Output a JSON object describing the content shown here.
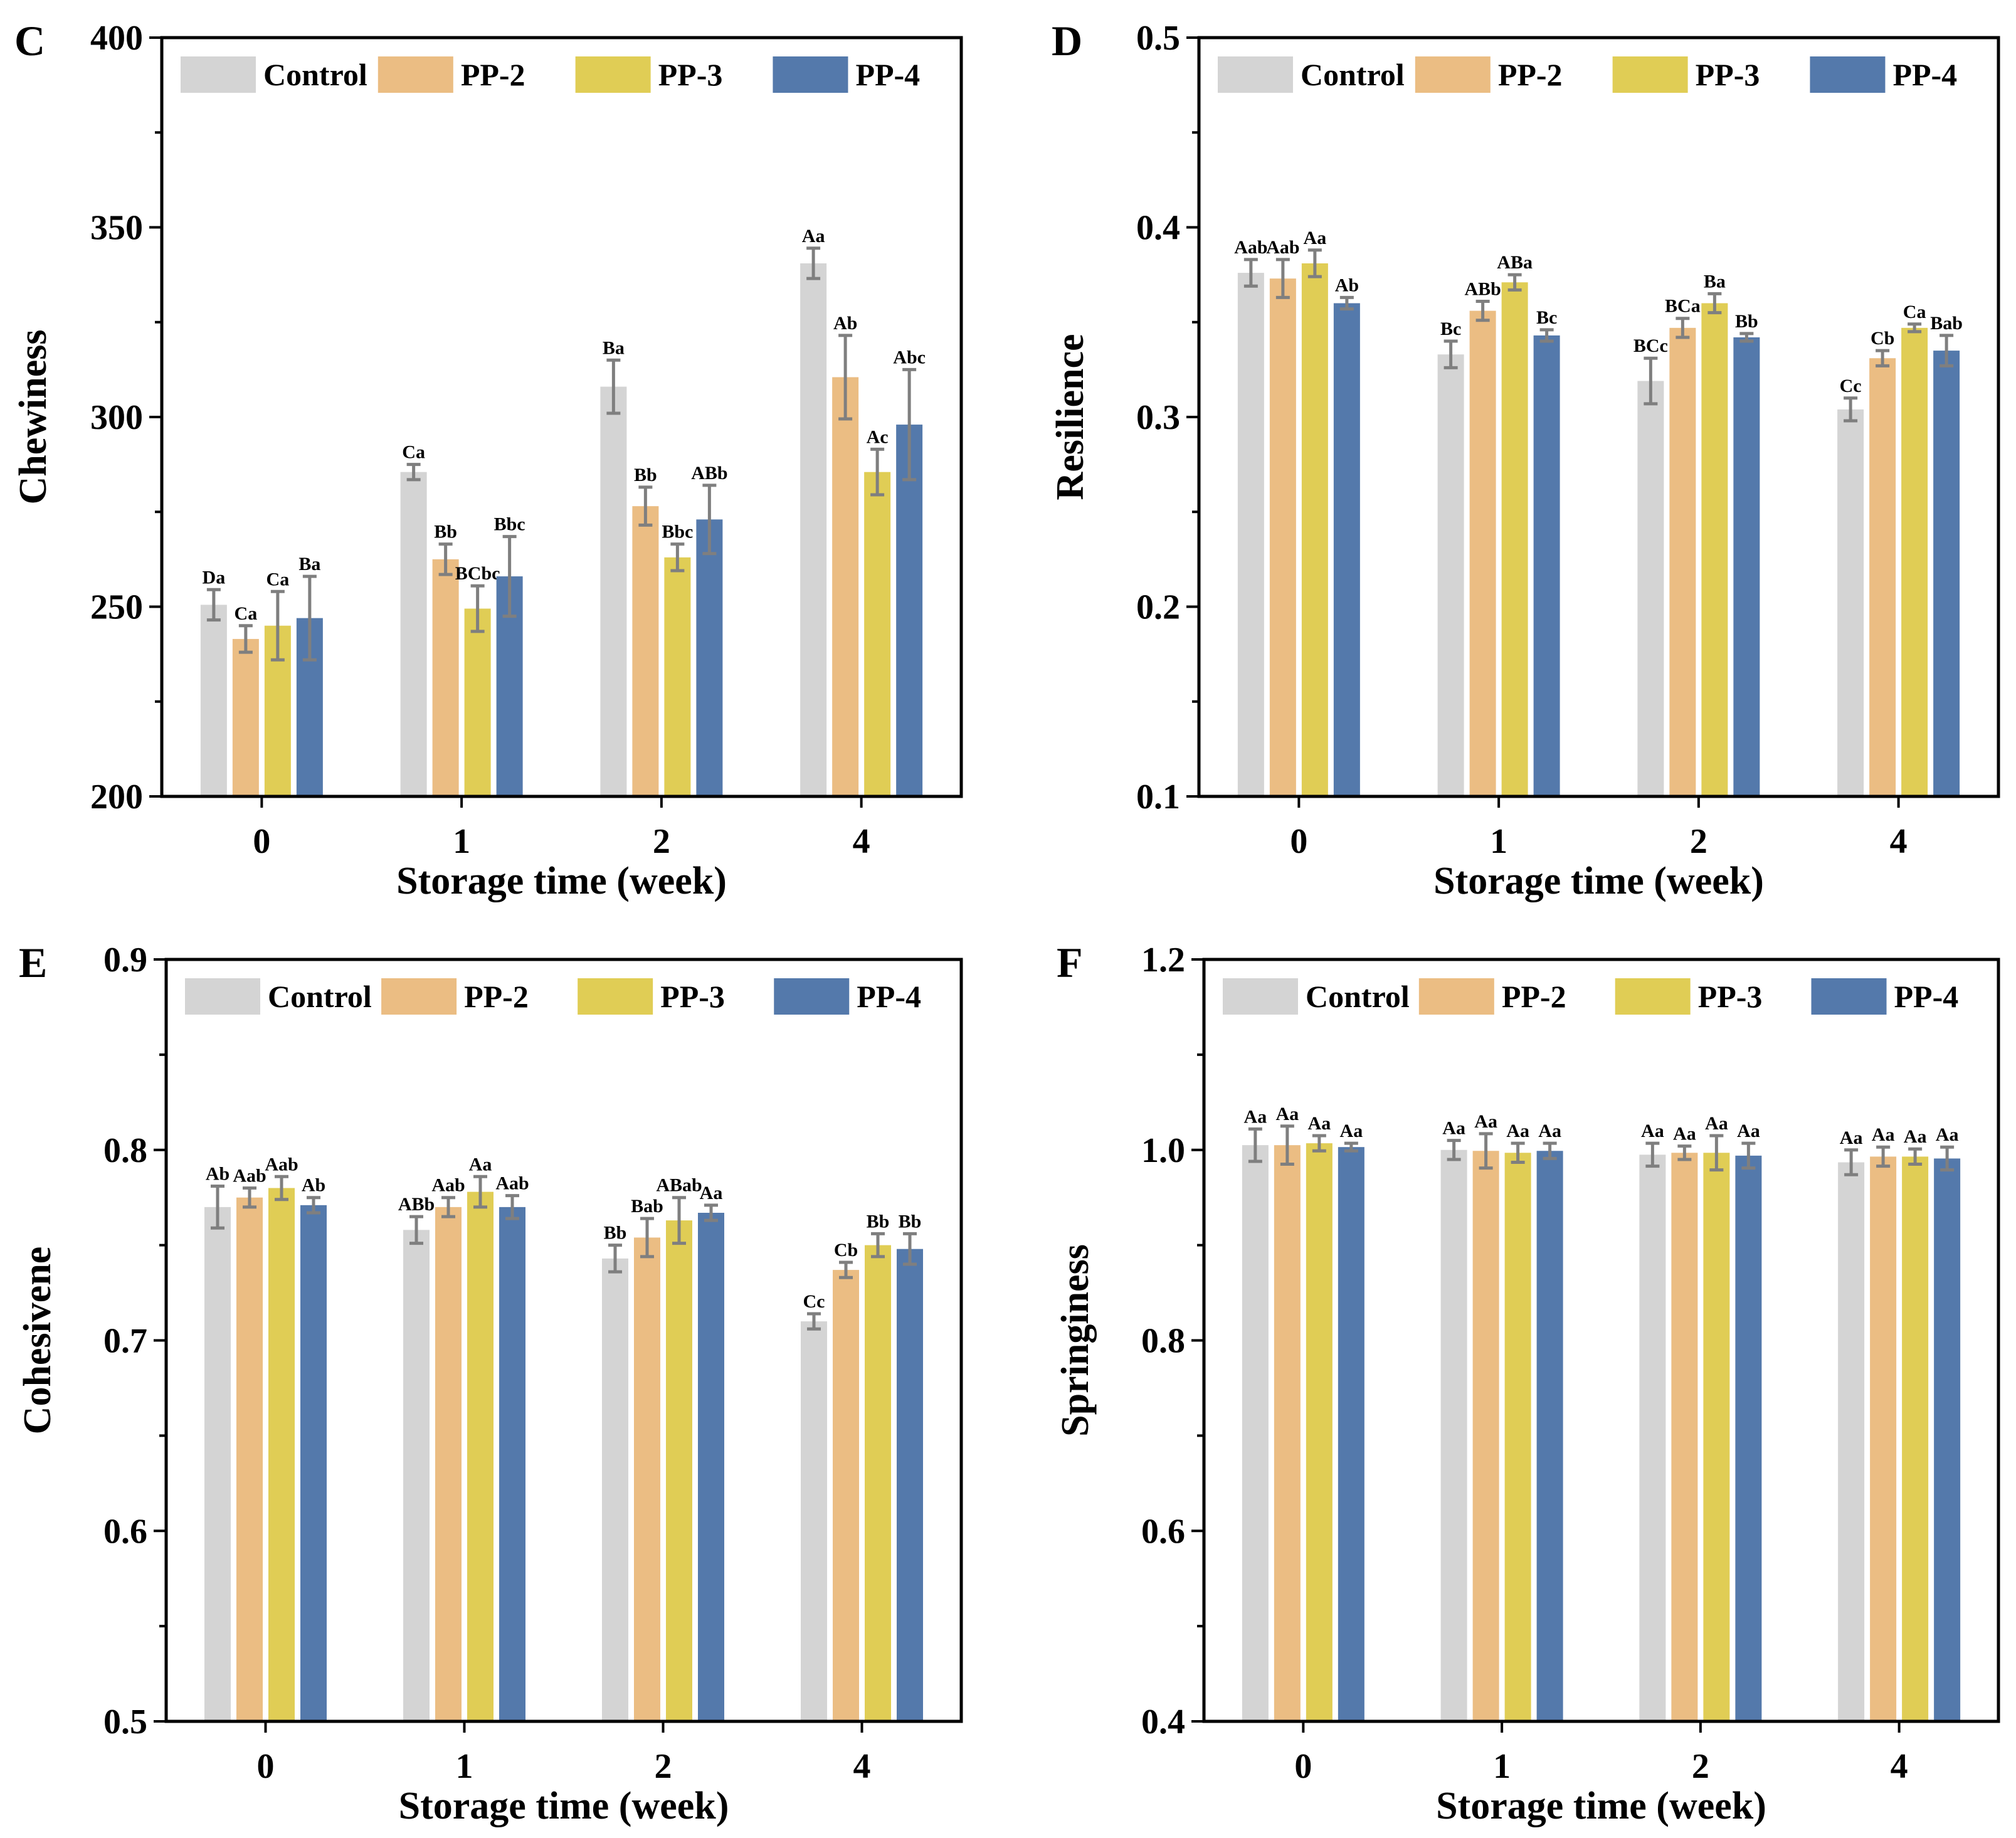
{
  "figure": {
    "series_names": [
      "Control",
      "PP-2",
      "PP-3",
      "PP-4"
    ],
    "series_colors": [
      "#d4d4d4",
      "#ebbd83",
      "#e0cd55",
      "#5479ab"
    ],
    "error_bar_color": "#7f7f7f"
  },
  "chart_data": [
    {
      "type": "bar",
      "panel": "C",
      "title": "",
      "xlabel": "Storage time (week)",
      "ylabel": "Chewiness",
      "categories": [
        "0",
        "1",
        "2",
        "4"
      ],
      "ylim": [
        200,
        400
      ],
      "yticks": [
        "200",
        "250",
        "300",
        "350",
        "400"
      ],
      "legend": "top",
      "series": [
        {
          "name": "Control",
          "values": [
            250.5,
            285.5,
            308,
            340.5
          ],
          "errors": [
            4,
            2,
            7,
            4
          ],
          "letters": [
            "Da",
            "Ca",
            "Ba",
            "Aa"
          ]
        },
        {
          "name": "PP-2",
          "values": [
            241.5,
            262.5,
            276.5,
            310.5
          ],
          "errors": [
            3.5,
            4,
            5,
            11
          ],
          "letters": [
            "Ca",
            "Bb",
            "Bb",
            "Ab"
          ]
        },
        {
          "name": "PP-3",
          "values": [
            245,
            249.5,
            263,
            285.5
          ],
          "errors": [
            9,
            6,
            3.5,
            6
          ],
          "letters": [
            "Ca",
            "BCbc",
            "Bbc",
            "Ac"
          ]
        },
        {
          "name": "PP-4",
          "values": [
            247,
            258,
            273,
            298
          ],
          "errors": [
            11,
            10.5,
            9,
            14.5
          ],
          "letters": [
            "Ba",
            "Bbc",
            "ABb",
            "Abc"
          ]
        }
      ]
    },
    {
      "type": "bar",
      "panel": "D",
      "title": "",
      "xlabel": "Storage time (week)",
      "ylabel": "Resilience",
      "categories": [
        "0",
        "1",
        "2",
        "4"
      ],
      "ylim": [
        0.1,
        0.5
      ],
      "yticks": [
        "0.1",
        "0.2",
        "0.3",
        "0.4",
        "0.5"
      ],
      "legend": "top",
      "series": [
        {
          "name": "Control",
          "values": [
            0.376,
            0.333,
            0.319,
            0.304
          ],
          "errors": [
            0.007,
            0.007,
            0.012,
            0.006
          ],
          "letters": [
            "Aab",
            "Bc",
            "BCc",
            "Cc"
          ]
        },
        {
          "name": "PP-2",
          "values": [
            0.373,
            0.356,
            0.347,
            0.331
          ],
          "errors": [
            0.01,
            0.005,
            0.005,
            0.004
          ],
          "letters": [
            "Aab",
            "ABb",
            "BCa",
            "Cb"
          ]
        },
        {
          "name": "PP-3",
          "values": [
            0.381,
            0.371,
            0.36,
            0.347
          ],
          "errors": [
            0.007,
            0.004,
            0.005,
            0.002
          ],
          "letters": [
            "Aa",
            "ABa",
            "Ba",
            "Ca"
          ]
        },
        {
          "name": "PP-4",
          "values": [
            0.36,
            0.343,
            0.342,
            0.335
          ],
          "errors": [
            0.003,
            0.003,
            0.002,
            0.008
          ],
          "letters": [
            "Ab",
            "Bc",
            "Bb",
            "Bab"
          ]
        }
      ]
    },
    {
      "type": "bar",
      "panel": "E",
      "title": "",
      "xlabel": "Storage time (week)",
      "ylabel": "Cohesivene",
      "categories": [
        "0",
        "1",
        "2",
        "4"
      ],
      "ylim": [
        0.5,
        0.9
      ],
      "yticks": [
        "0.5",
        "0.6",
        "0.7",
        "0.8",
        "0.9"
      ],
      "legend": "top",
      "series": [
        {
          "name": "Control",
          "values": [
            0.77,
            0.758,
            0.743,
            0.71
          ],
          "errors": [
            0.011,
            0.007,
            0.007,
            0.004
          ],
          "letters": [
            "Ab",
            "ABb",
            "Bb",
            "Cc"
          ]
        },
        {
          "name": "PP-2",
          "values": [
            0.775,
            0.77,
            0.754,
            0.737
          ],
          "errors": [
            0.005,
            0.005,
            0.01,
            0.004
          ],
          "letters": [
            "Aab",
            "Aab",
            "Bab",
            "Cb"
          ]
        },
        {
          "name": "PP-3",
          "values": [
            0.78,
            0.778,
            0.763,
            0.75
          ],
          "errors": [
            0.006,
            0.008,
            0.012,
            0.006
          ],
          "letters": [
            "Aab",
            "Aa",
            "ABab",
            "Bb"
          ]
        },
        {
          "name": "PP-4",
          "values": [
            0.771,
            0.77,
            0.767,
            0.748
          ],
          "errors": [
            0.004,
            0.006,
            0.004,
            0.008
          ],
          "letters": [
            "Ab",
            "Aab",
            "Aa",
            "Bb"
          ]
        }
      ]
    },
    {
      "type": "bar",
      "panel": "F",
      "title": "",
      "xlabel": "Storage time (week)",
      "ylabel": "Springiness",
      "categories": [
        "0",
        "1",
        "2",
        "4"
      ],
      "ylim": [
        0.4,
        1.2
      ],
      "yticks": [
        "0.4",
        "0.6",
        "0.8",
        "1.0",
        "1.2"
      ],
      "legend": "top",
      "series": [
        {
          "name": "Control",
          "values": [
            1.005,
            1.0,
            0.995,
            0.987
          ],
          "errors": [
            0.017,
            0.01,
            0.012,
            0.013
          ],
          "letters": [
            "Aa",
            "Aa",
            "Aa",
            "Aa"
          ]
        },
        {
          "name": "PP-2",
          "values": [
            1.005,
            0.999,
            0.997,
            0.993
          ],
          "errors": [
            0.02,
            0.018,
            0.007,
            0.01
          ],
          "letters": [
            "Aa",
            "Aa",
            "Aa",
            "Aa"
          ]
        },
        {
          "name": "PP-3",
          "values": [
            1.007,
            0.997,
            0.997,
            0.993
          ],
          "errors": [
            0.008,
            0.01,
            0.018,
            0.008
          ],
          "letters": [
            "Aa",
            "Aa",
            "Aa",
            "Aa"
          ]
        },
        {
          "name": "PP-4",
          "values": [
            1.003,
            0.999,
            0.994,
            0.991
          ],
          "errors": [
            0.004,
            0.008,
            0.013,
            0.012
          ],
          "letters": [
            "Aa",
            "Aa",
            "Aa",
            "Aa"
          ]
        }
      ]
    }
  ]
}
